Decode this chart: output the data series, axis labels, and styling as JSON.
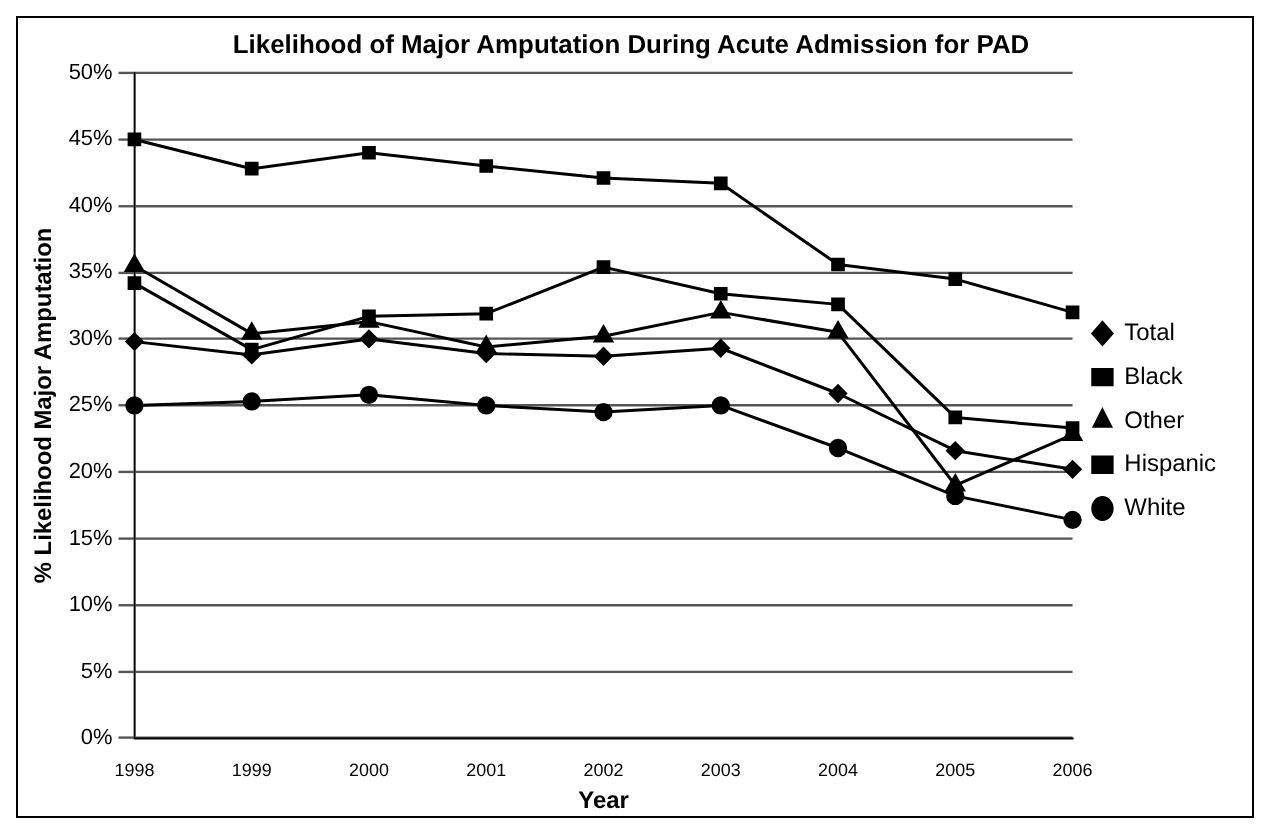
{
  "chart_data": {
    "type": "line",
    "title": "Likelihood of Major Amputation During Acute Admission for PAD",
    "xlabel": "Year",
    "ylabel": "% Likelihood Major Amputation",
    "categories": [
      "1998",
      "1999",
      "2000",
      "2001",
      "2002",
      "2003",
      "2004",
      "2005",
      "2006"
    ],
    "series": [
      {
        "name": "Total",
        "color": "#000000",
        "marker": "diamond",
        "values": [
          29.8,
          28.8,
          30,
          28.9,
          28.7,
          29.3,
          25.9,
          21.6,
          20.2
        ]
      },
      {
        "name": "Black",
        "color": "#000000",
        "marker": "square",
        "values": [
          45,
          42.8,
          44,
          43,
          42.1,
          41.7,
          35.6,
          34.5,
          32
        ]
      },
      {
        "name": "Other",
        "color": "#000000",
        "marker": "triangle",
        "values": [
          35.5,
          30.4,
          31.3,
          29.4,
          30.2,
          32,
          30.5,
          19,
          22.8
        ]
      },
      {
        "name": "Hispanic",
        "color": "#000000",
        "marker": "square",
        "values": [
          34.2,
          29.2,
          31.7,
          31.9,
          35.4,
          33.4,
          32.6,
          24.1,
          23.3
        ]
      },
      {
        "name": "White",
        "color": "#000000",
        "marker": "circle",
        "values": [
          25,
          25.3,
          25.8,
          25,
          24.5,
          25,
          21.8,
          18.2,
          16.4
        ]
      }
    ],
    "ylim": [
      0,
      50
    ],
    "yticks": [
      {
        "value": 0,
        "label": "0%"
      },
      {
        "value": 5,
        "label": "5%"
      },
      {
        "value": 10,
        "label": "10%"
      },
      {
        "value": 15,
        "label": "15%"
      },
      {
        "value": 20,
        "label": "20%"
      },
      {
        "value": 25,
        "label": "25%"
      },
      {
        "value": 30,
        "label": "30%"
      },
      {
        "value": 35,
        "label": "35%"
      },
      {
        "value": 40,
        "label": "40%"
      },
      {
        "value": 45,
        "label": "45%"
      },
      {
        "value": 50,
        "label": "50%"
      }
    ],
    "grid": "y",
    "legend": "right",
    "line_style": "solid"
  }
}
